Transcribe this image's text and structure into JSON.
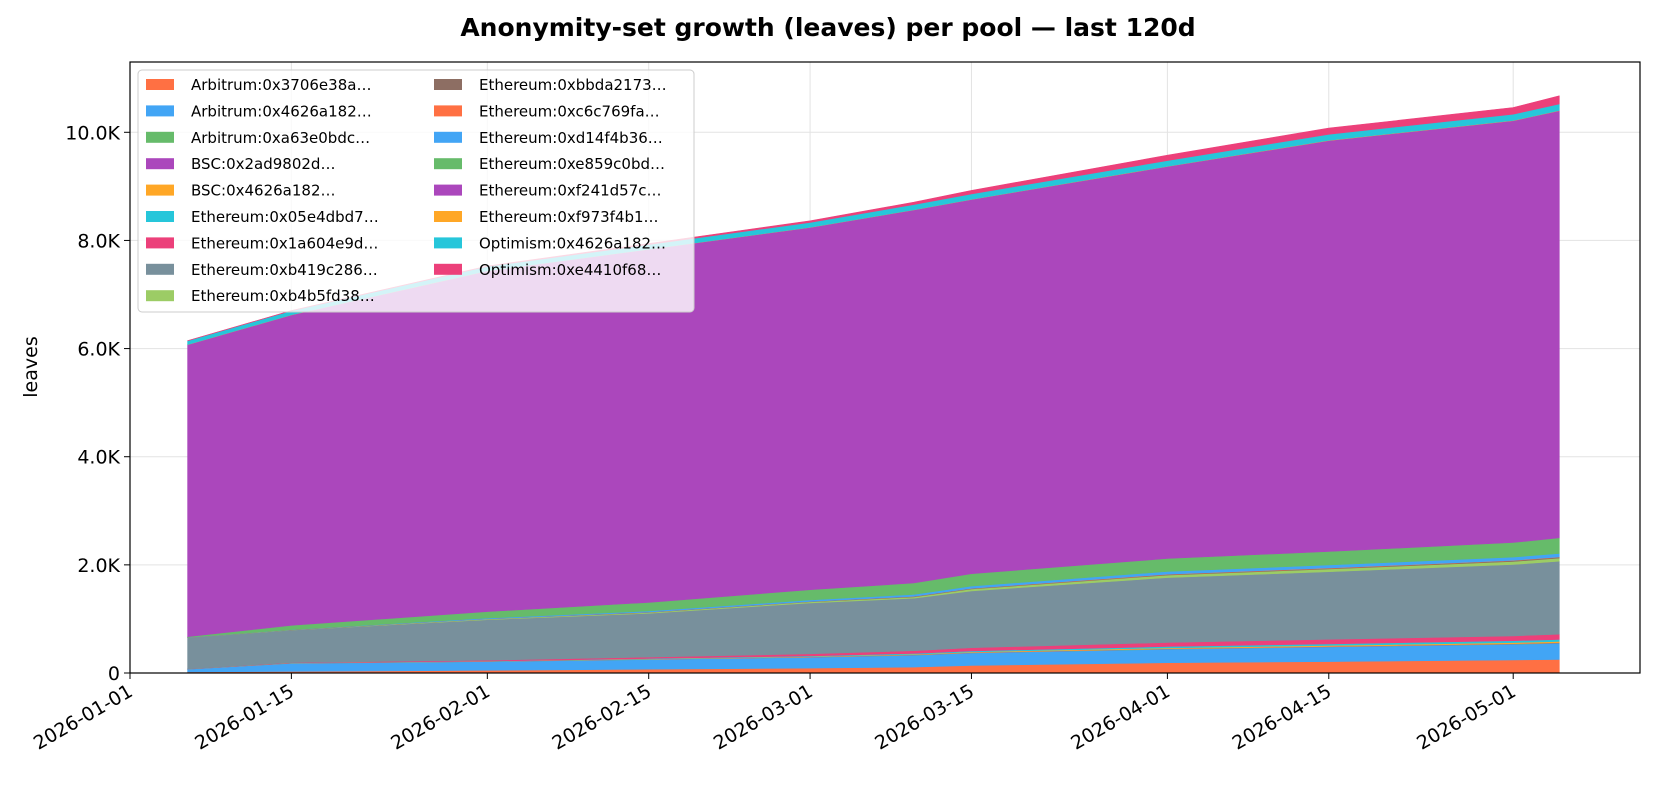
{
  "chart_data": {
    "type": "area",
    "stacked": true,
    "title": "Anonymity-set growth (leaves) per pool — last 120d",
    "xlabel": "",
    "ylabel": "leaves",
    "x_range": [
      "2026-01-01",
      "2026-05-12"
    ],
    "ylim": [
      0,
      11300
    ],
    "x_ticks": [
      "2026-01-01",
      "2026-01-15",
      "2026-02-01",
      "2026-02-15",
      "2026-03-01",
      "2026-03-15",
      "2026-04-01",
      "2026-04-15",
      "2026-05-01"
    ],
    "y_ticks": [
      0,
      2000,
      4000,
      6000,
      8000,
      10000
    ],
    "y_tick_labels": [
      "0",
      "2.0K",
      "4.0K",
      "6.0K",
      "8.0K",
      "10.0K"
    ],
    "grid": true,
    "legend_position": "upper-left",
    "legend_columns": 2,
    "dates": [
      "2026-01-06",
      "2026-01-15",
      "2026-02-01",
      "2026-02-15",
      "2026-03-01",
      "2026-03-10",
      "2026-03-15",
      "2026-04-01",
      "2026-04-15",
      "2026-05-01",
      "2026-05-05"
    ],
    "series": [
      {
        "name": "Arbitrum:0x3706e38a…",
        "color": "#ff7043",
        "values": [
          20,
          30,
          50,
          70,
          90,
          110,
          140,
          190,
          210,
          240,
          250
        ]
      },
      {
        "name": "Arbitrum:0x4626a182…",
        "color": "#42a5f5",
        "values": [
          50,
          150,
          160,
          180,
          200,
          220,
          230,
          250,
          270,
          290,
          300
        ]
      },
      {
        "name": "Arbitrum:0xa63e0bdc…",
        "color": "#66bb6a",
        "values": [
          1,
          2,
          2,
          3,
          3,
          4,
          4,
          5,
          5,
          6,
          6
        ]
      },
      {
        "name": "BSC:0x2ad9802d…",
        "color": "#ab47bc",
        "values": [
          1,
          2,
          2,
          3,
          3,
          4,
          4,
          5,
          5,
          6,
          6
        ]
      },
      {
        "name": "BSC:0x4626a182…",
        "color": "#ffa726",
        "values": [
          1,
          2,
          3,
          5,
          8,
          10,
          12,
          15,
          18,
          20,
          22
        ]
      },
      {
        "name": "Ethereum:0x05e4dbd7…",
        "color": "#26c6da",
        "values": [
          1,
          2,
          4,
          8,
          12,
          15,
          18,
          25,
          30,
          35,
          38
        ]
      },
      {
        "name": "Ethereum:0x1a604e9d…",
        "color": "#ec407a",
        "values": [
          2,
          5,
          15,
          25,
          40,
          50,
          60,
          75,
          85,
          90,
          95
        ]
      },
      {
        "name": "Ethereum:0xb419c286…",
        "color": "#78909c",
        "values": [
          580,
          600,
          750,
          810,
          940,
          970,
          1050,
          1200,
          1250,
          1320,
          1350
        ]
      },
      {
        "name": "Ethereum:0xb4b5fd38…",
        "color": "#9ccc65",
        "values": [
          3,
          5,
          10,
          15,
          20,
          25,
          35,
          45,
          50,
          55,
          58
        ]
      },
      {
        "name": "Ethereum:0xbbda2173…",
        "color": "#8d6e63",
        "values": [
          1,
          2,
          3,
          5,
          6,
          8,
          10,
          12,
          14,
          16,
          17
        ]
      },
      {
        "name": "Ethereum:0xc6c769fa…",
        "color": "#ff7043",
        "values": [
          1,
          1,
          2,
          2,
          3,
          3,
          4,
          5,
          5,
          6,
          6
        ]
      },
      {
        "name": "Ethereum:0xd14f4b36…",
        "color": "#42a5f5",
        "values": [
          1,
          2,
          15,
          20,
          25,
          35,
          40,
          50,
          55,
          60,
          62
        ]
      },
      {
        "name": "Ethereum:0xe859c0bd…",
        "color": "#66bb6a",
        "values": [
          10,
          80,
          120,
          160,
          190,
          210,
          230,
          240,
          250,
          270,
          290
        ]
      },
      {
        "name": "Ethereum:0xf241d57c…",
        "color": "#ab47bc",
        "values": [
          5400,
          5740,
          6300,
          6530,
          6700,
          6900,
          6920,
          7250,
          7600,
          7800,
          7900
        ]
      },
      {
        "name": "Ethereum:0xf973f4b1…",
        "color": "#ffa726",
        "values": [
          1,
          1,
          2,
          2,
          3,
          3,
          4,
          4,
          5,
          5,
          5
        ]
      },
      {
        "name": "Optimism:0x4626a182…",
        "color": "#26c6da",
        "values": [
          70,
          75,
          80,
          85,
          90,
          95,
          100,
          105,
          110,
          115,
          120
        ]
      },
      {
        "name": "Optimism:0xe4410f68…",
        "color": "#ec407a",
        "values": [
          2,
          5,
          10,
          20,
          30,
          45,
          65,
          100,
          115,
          125,
          150
        ]
      }
    ]
  }
}
